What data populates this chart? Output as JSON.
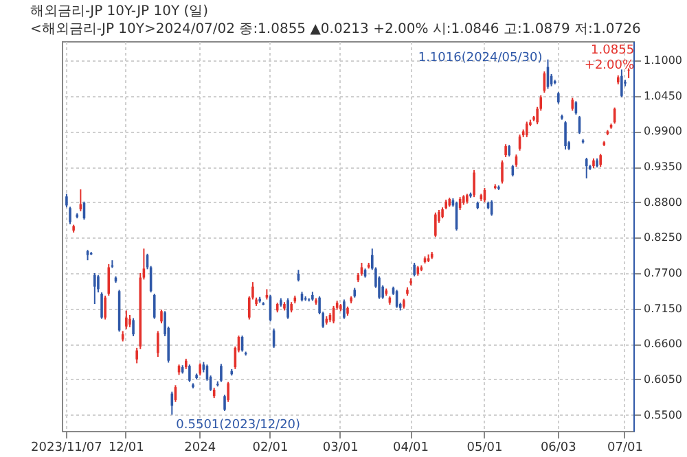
{
  "chart_data": {
    "type": "candlestick",
    "title": "해외금리-JP    10Y-JP 10Y (일)",
    "subtitle": "<해외금리-JP 10Y>2024/07/02 종:1.0855 ▲0.0213 +2.00% 시:1.0846 고:1.0879 저:1.0726",
    "annotations": [
      "1.1016(2024/05/30)",
      "0.5501(2023/12/20)",
      "1.0855 +2.00%"
    ],
    "categories": [
      "2023/11/07",
      null,
      null,
      null,
      null,
      null,
      null,
      null,
      null,
      null,
      null,
      null,
      null,
      null,
      null,
      null,
      null,
      "12/01",
      null,
      null,
      null,
      null,
      null,
      null,
      null,
      null,
      null,
      null,
      null,
      null,
      null,
      null,
      null,
      null,
      null,
      null,
      null,
      null,
      "2024",
      null,
      null,
      null,
      null,
      null,
      null,
      null,
      null,
      null,
      null,
      null,
      null,
      null,
      null,
      null,
      null,
      null,
      null,
      null,
      "02/01",
      null,
      null,
      null,
      null,
      null,
      null,
      null,
      null,
      null,
      null,
      null,
      null,
      null,
      null,
      null,
      null,
      null,
      null,
      null,
      "03/01",
      null,
      null,
      null,
      null,
      null,
      null,
      null,
      null,
      null,
      null,
      null,
      null,
      null,
      null,
      null,
      null,
      null,
      null,
      null,
      "04/01",
      null,
      null,
      null,
      null,
      null,
      null,
      null,
      null,
      null,
      null,
      null,
      null,
      null,
      null,
      null,
      null,
      null,
      null,
      null,
      null,
      "05/01",
      null,
      null,
      null,
      null,
      null,
      null,
      null,
      null,
      null,
      null,
      null,
      null,
      null,
      null,
      null,
      null,
      null,
      null,
      null,
      null,
      "06/03",
      null,
      null,
      null,
      null,
      null,
      null,
      null,
      null,
      null,
      null,
      null,
      null,
      null,
      null,
      null,
      null,
      null,
      null,
      "07/01",
      null
    ],
    "ohlc": [
      [
        0.889,
        0.893,
        0.872,
        0.875
      ],
      [
        0.871,
        0.873,
        0.846,
        0.849
      ],
      [
        0.836,
        0.845,
        0.833,
        0.843
      ],
      [
        0.861,
        0.863,
        0.855,
        0.857
      ],
      [
        0.869,
        0.9,
        0.866,
        0.877
      ],
      [
        0.879,
        0.881,
        0.853,
        0.855
      ],
      [
        0.804,
        0.806,
        0.79,
        0.798
      ],
      [
        0.801,
        0.803,
        0.798,
        0.799
      ],
      [
        0.767,
        0.77,
        0.722,
        0.749
      ],
      [
        0.765,
        0.767,
        0.74,
        0.745
      ],
      [
        0.738,
        0.74,
        0.699,
        0.701
      ],
      [
        0.701,
        0.735,
        0.698,
        0.732
      ],
      [
        0.738,
        0.784,
        0.735,
        0.779
      ],
      [
        0.782,
        0.79,
        0.778,
        0.78
      ],
      [
        0.763,
        0.765,
        0.755,
        0.757
      ],
      [
        0.742,
        0.744,
        0.679,
        0.681
      ],
      [
        0.667,
        0.68,
        0.664,
        0.675
      ],
      [
        0.687,
        0.712,
        0.683,
        0.701
      ],
      [
        0.69,
        0.705,
        0.686,
        0.699
      ],
      [
        0.697,
        0.7,
        0.672,
        0.675
      ],
      [
        0.636,
        0.654,
        0.63,
        0.65
      ],
      [
        0.656,
        0.77,
        0.652,
        0.763
      ],
      [
        0.763,
        0.808,
        0.76,
        0.777
      ],
      [
        0.798,
        0.8,
        0.776,
        0.779
      ],
      [
        0.779,
        0.781,
        0.74,
        0.742
      ],
      [
        0.736,
        0.738,
        0.699,
        0.701
      ],
      [
        0.646,
        0.68,
        0.64,
        0.677
      ],
      [
        0.695,
        0.713,
        0.692,
        0.711
      ],
      [
        0.709,
        0.711,
        0.672,
        0.675
      ],
      [
        0.685,
        0.687,
        0.631,
        0.634
      ],
      [
        0.583,
        0.586,
        0.5501,
        0.564
      ],
      [
        0.573,
        0.596,
        0.57,
        0.593
      ],
      [
        0.616,
        0.628,
        0.612,
        0.626
      ],
      [
        0.624,
        0.627,
        0.614,
        0.616
      ],
      [
        0.624,
        0.637,
        0.621,
        0.634
      ],
      [
        0.626,
        0.628,
        0.601,
        0.603
      ],
      [
        0.597,
        0.599,
        0.591,
        0.593
      ],
      [
        0.612,
        0.614,
        0.605,
        0.607
      ],
      [
        0.614,
        0.63,
        0.611,
        0.628
      ],
      [
        0.628,
        0.632,
        0.616,
        0.62
      ],
      [
        0.626,
        0.628,
        0.603,
        0.605
      ],
      [
        0.609,
        0.611,
        0.587,
        0.589
      ],
      [
        0.579,
        0.592,
        0.576,
        0.589
      ],
      [
        0.598,
        0.602,
        0.594,
        0.596
      ],
      [
        0.626,
        0.629,
        0.601,
        0.603
      ],
      [
        0.579,
        0.581,
        0.556,
        0.558
      ],
      [
        0.573,
        0.601,
        0.57,
        0.599
      ],
      [
        0.618,
        0.621,
        0.611,
        0.613
      ],
      [
        0.624,
        0.656,
        0.621,
        0.654
      ],
      [
        0.65,
        0.673,
        0.647,
        0.671
      ],
      [
        0.671,
        0.673,
        0.648,
        0.65
      ],
      [
        0.646,
        0.648,
        0.642,
        0.644
      ],
      [
        0.701,
        0.734,
        0.698,
        0.732
      ],
      [
        0.732,
        0.756,
        0.729,
        0.749
      ],
      [
        0.722,
        0.732,
        0.719,
        0.729
      ],
      [
        0.73,
        0.733,
        0.724,
        0.726
      ],
      [
        0.723,
        0.725,
        0.72,
        0.721
      ],
      [
        0.732,
        0.745,
        0.729,
        0.736
      ],
      [
        0.734,
        0.736,
        0.695,
        0.697
      ],
      [
        0.681,
        0.684,
        0.654,
        0.656
      ],
      [
        0.712,
        0.724,
        0.709,
        0.722
      ],
      [
        0.728,
        0.731,
        0.718,
        0.72
      ],
      [
        0.715,
        0.725,
        0.712,
        0.722
      ],
      [
        0.728,
        0.731,
        0.699,
        0.701
      ],
      [
        0.712,
        0.725,
        0.709,
        0.722
      ],
      [
        0.726,
        0.735,
        0.723,
        0.732
      ],
      [
        0.769,
        0.775,
        0.757,
        0.759
      ],
      [
        0.738,
        0.741,
        0.726,
        0.728
      ],
      [
        0.731,
        0.734,
        0.727,
        0.729
      ],
      [
        0.729,
        0.731,
        0.726,
        0.728
      ],
      [
        0.736,
        0.741,
        0.727,
        0.729
      ],
      [
        0.724,
        0.731,
        0.721,
        0.728
      ],
      [
        0.732,
        0.734,
        0.706,
        0.708
      ],
      [
        0.708,
        0.71,
        0.685,
        0.687
      ],
      [
        0.693,
        0.703,
        0.69,
        0.699
      ],
      [
        0.697,
        0.708,
        0.694,
        0.705
      ],
      [
        0.695,
        0.719,
        0.692,
        0.716
      ],
      [
        0.716,
        0.727,
        0.713,
        0.724
      ],
      [
        0.714,
        0.722,
        0.711,
        0.72
      ],
      [
        0.726,
        0.729,
        0.699,
        0.701
      ],
      [
        0.707,
        0.718,
        0.704,
        0.716
      ],
      [
        0.726,
        0.734,
        0.723,
        0.732
      ],
      [
        0.744,
        0.747,
        0.732,
        0.734
      ],
      [
        0.759,
        0.77,
        0.756,
        0.767
      ],
      [
        0.769,
        0.786,
        0.766,
        0.779
      ],
      [
        0.775,
        0.777,
        0.763,
        0.765
      ],
      [
        0.779,
        0.786,
        0.777,
        0.783
      ],
      [
        0.798,
        0.808,
        0.775,
        0.777
      ],
      [
        0.777,
        0.779,
        0.747,
        0.749
      ],
      [
        0.763,
        0.765,
        0.73,
        0.732
      ],
      [
        0.749,
        0.751,
        0.73,
        0.732
      ],
      [
        0.738,
        0.746,
        0.735,
        0.743
      ],
      [
        0.724,
        0.734,
        0.721,
        0.732
      ],
      [
        0.747,
        0.749,
        0.736,
        0.738
      ],
      [
        0.742,
        0.744,
        0.716,
        0.718
      ],
      [
        0.722,
        0.724,
        0.712,
        0.716
      ],
      [
        0.718,
        0.73,
        0.715,
        0.728
      ],
      [
        0.738,
        0.748,
        0.735,
        0.744
      ],
      [
        0.754,
        0.762,
        0.751,
        0.758
      ],
      [
        0.783,
        0.786,
        0.765,
        0.767
      ],
      [
        0.769,
        0.781,
        0.766,
        0.779
      ],
      [
        0.775,
        0.782,
        0.773,
        0.779
      ],
      [
        0.787,
        0.796,
        0.785,
        0.793
      ],
      [
        0.789,
        0.799,
        0.787,
        0.793
      ],
      [
        0.794,
        0.803,
        0.792,
        0.8
      ],
      [
        0.828,
        0.864,
        0.826,
        0.861
      ],
      [
        0.851,
        0.868,
        0.848,
        0.865
      ],
      [
        0.857,
        0.872,
        0.855,
        0.869
      ],
      [
        0.871,
        0.884,
        0.869,
        0.881
      ],
      [
        0.875,
        0.887,
        0.873,
        0.885
      ],
      [
        0.883,
        0.886,
        0.873,
        0.875
      ],
      [
        0.879,
        0.881,
        0.836,
        0.838
      ],
      [
        0.871,
        0.888,
        0.868,
        0.885
      ],
      [
        0.879,
        0.891,
        0.876,
        0.889
      ],
      [
        0.881,
        0.893,
        0.878,
        0.891
      ],
      [
        0.893,
        0.895,
        0.887,
        0.889
      ],
      [
        0.891,
        0.93,
        0.888,
        0.926
      ],
      [
        0.879,
        0.881,
        0.869,
        0.871
      ],
      [
        0.885,
        0.893,
        0.882,
        0.891
      ],
      [
        0.883,
        0.902,
        0.88,
        0.899
      ],
      [
        0.879,
        0.881,
        0.869,
        0.871
      ],
      [
        0.881,
        0.883,
        0.859,
        0.861
      ],
      [
        0.902,
        0.908,
        0.9,
        0.905
      ],
      [
        0.904,
        0.906,
        0.899,
        0.901
      ],
      [
        0.912,
        0.945,
        0.909,
        0.942
      ],
      [
        0.953,
        0.97,
        0.95,
        0.967
      ],
      [
        0.967,
        0.969,
        0.951,
        0.953
      ],
      [
        0.936,
        0.938,
        0.92,
        0.922
      ],
      [
        0.938,
        0.954,
        0.935,
        0.951
      ],
      [
        0.963,
        0.985,
        0.96,
        0.982
      ],
      [
        0.984,
        0.993,
        0.981,
        0.99
      ],
      [
        0.984,
        1.005,
        0.981,
        1.002
      ],
      [
        1.0,
        1.008,
        0.998,
        1.004
      ],
      [
        1.008,
        1.014,
        1.006,
        1.012
      ],
      [
        1.004,
        1.028,
        1.001,
        1.025
      ],
      [
        1.025,
        1.046,
        1.022,
        1.043
      ],
      [
        1.053,
        1.083,
        1.05,
        1.08
      ],
      [
        1.09,
        1.1016,
        1.056,
        1.059
      ],
      [
        1.076,
        1.079,
        1.06,
        1.063
      ],
      [
        1.068,
        1.07,
        1.063,
        1.065
      ],
      [
        1.049,
        1.051,
        1.033,
        1.035
      ],
      [
        1.014,
        1.016,
        1.008,
        1.01
      ],
      [
        1.004,
        1.006,
        0.962,
        0.967
      ],
      [
        0.973,
        0.975,
        0.961,
        0.963
      ],
      [
        1.025,
        1.042,
        1.022,
        1.039
      ],
      [
        1.035,
        1.037,
        1.016,
        1.018
      ],
      [
        1.012,
        1.014,
        0.986,
        0.988
      ],
      [
        0.976,
        0.978,
        0.971,
        0.973
      ],
      [
        0.947,
        0.949,
        0.917,
        0.936
      ],
      [
        0.936,
        0.938,
        0.93,
        0.932
      ],
      [
        0.936,
        0.948,
        0.933,
        0.945
      ],
      [
        0.945,
        0.948,
        0.934,
        0.936
      ],
      [
        0.938,
        0.955,
        0.935,
        0.953
      ],
      [
        0.969,
        0.975,
        0.967,
        0.973
      ],
      [
        0.986,
        0.992,
        0.984,
        0.99
      ],
      [
        0.996,
        1.002,
        0.994,
        1.0
      ],
      [
        1.004,
        1.027,
        1.002,
        1.025
      ],
      [
        1.066,
        1.077,
        1.063,
        1.074
      ],
      [
        1.076,
        1.086,
        1.043,
        1.045
      ],
      [
        1.067,
        1.07,
        1.06,
        1.0642
      ],
      [
        1.0846,
        1.0879,
        1.0726,
        1.0855
      ]
    ],
    "colors": [
      "#2f58a8",
      "#2f58a8",
      "#e4312b",
      "#2f58a8",
      "#e4312b",
      "#2f58a8",
      "#2f58a8",
      "#2f58a8",
      "#2f58a8",
      "#2f58a8",
      "#2f58a8",
      "#e4312b",
      "#e4312b",
      "#2f58a8",
      "#2f58a8",
      "#2f58a8",
      "#e4312b",
      "#e4312b",
      "#e4312b",
      "#2f58a8",
      "#e4312b",
      "#e4312b",
      "#e4312b",
      "#2f58a8",
      "#2f58a8",
      "#2f58a8",
      "#e4312b",
      "#e4312b",
      "#2f58a8",
      "#2f58a8",
      "#2f58a8",
      "#e4312b",
      "#e4312b",
      "#2f58a8",
      "#e4312b",
      "#2f58a8",
      "#2f58a8",
      "#2f58a8",
      "#e4312b",
      "#2f58a8",
      "#2f58a8",
      "#2f58a8",
      "#e4312b",
      "#2f58a8",
      "#2f58a8",
      "#2f58a8",
      "#e4312b",
      "#2f58a8",
      "#e4312b",
      "#e4312b",
      "#2f58a8",
      "#2f58a8",
      "#e4312b",
      "#e4312b",
      "#e4312b",
      "#2f58a8",
      "#2f58a8",
      "#e4312b",
      "#2f58a8",
      "#2f58a8",
      "#e4312b",
      "#2f58a8",
      "#e4312b",
      "#2f58a8",
      "#e4312b",
      "#e4312b",
      "#2f58a8",
      "#2f58a8",
      "#2f58a8",
      "#2f58a8",
      "#2f58a8",
      "#e4312b",
      "#2f58a8",
      "#2f58a8",
      "#e4312b",
      "#e4312b",
      "#e4312b",
      "#e4312b",
      "#e4312b",
      "#2f58a8",
      "#e4312b",
      "#e4312b",
      "#2f58a8",
      "#e4312b",
      "#e4312b",
      "#2f58a8",
      "#e4312b",
      "#2f58a8",
      "#2f58a8",
      "#2f58a8",
      "#2f58a8",
      "#e4312b",
      "#e4312b",
      "#2f58a8",
      "#2f58a8",
      "#2f58a8",
      "#e4312b",
      "#e4312b",
      "#e4312b",
      "#2f58a8",
      "#e4312b",
      "#e4312b",
      "#e4312b",
      "#e4312b",
      "#e4312b",
      "#e4312b",
      "#e4312b",
      "#e4312b",
      "#e4312b",
      "#e4312b",
      "#2f58a8",
      "#2f58a8",
      "#e4312b",
      "#e4312b",
      "#e4312b",
      "#2f58a8",
      "#e4312b",
      "#2f58a8",
      "#e4312b",
      "#e4312b",
      "#2f58a8",
      "#2f58a8",
      "#e4312b",
      "#2f58a8",
      "#e4312b",
      "#e4312b",
      "#2f58a8",
      "#2f58a8",
      "#e4312b",
      "#e4312b",
      "#e4312b",
      "#e4312b",
      "#e4312b",
      "#e4312b",
      "#e4312b",
      "#e4312b",
      "#e4312b",
      "#2f58a8",
      "#2f58a8",
      "#2f58a8",
      "#2f58a8",
      "#2f58a8",
      "#2f58a8",
      "#2f58a8",
      "#e4312b",
      "#2f58a8",
      "#2f58a8",
      "#2f58a8",
      "#2f58a8",
      "#2f58a8",
      "#e4312b",
      "#2f58a8",
      "#e4312b",
      "#e4312b",
      "#e4312b",
      "#e4312b",
      "#e4312b",
      "#e4312b",
      "#2f58a8",
      "#2f58a8",
      "#e4312b"
    ],
    "ylim": [
      0.525,
      1.13
    ],
    "yticks": [
      {
        "value": 0.55,
        "label": "0.5500"
      },
      {
        "value": 0.605,
        "label": "0.6050"
      },
      {
        "value": 0.66,
        "label": "0.6600"
      },
      {
        "value": 0.715,
        "label": "0.7150"
      },
      {
        "value": 0.77,
        "label": "0.7700"
      },
      {
        "value": 0.825,
        "label": "0.8250"
      },
      {
        "value": 0.88,
        "label": "0.8800"
      },
      {
        "value": 0.935,
        "label": "0.9350"
      },
      {
        "value": 0.99,
        "label": "0.9900"
      },
      {
        "value": 1.045,
        "label": "1.0450"
      },
      {
        "value": 1.1,
        "label": "1.1000"
      }
    ],
    "grid": true
  }
}
